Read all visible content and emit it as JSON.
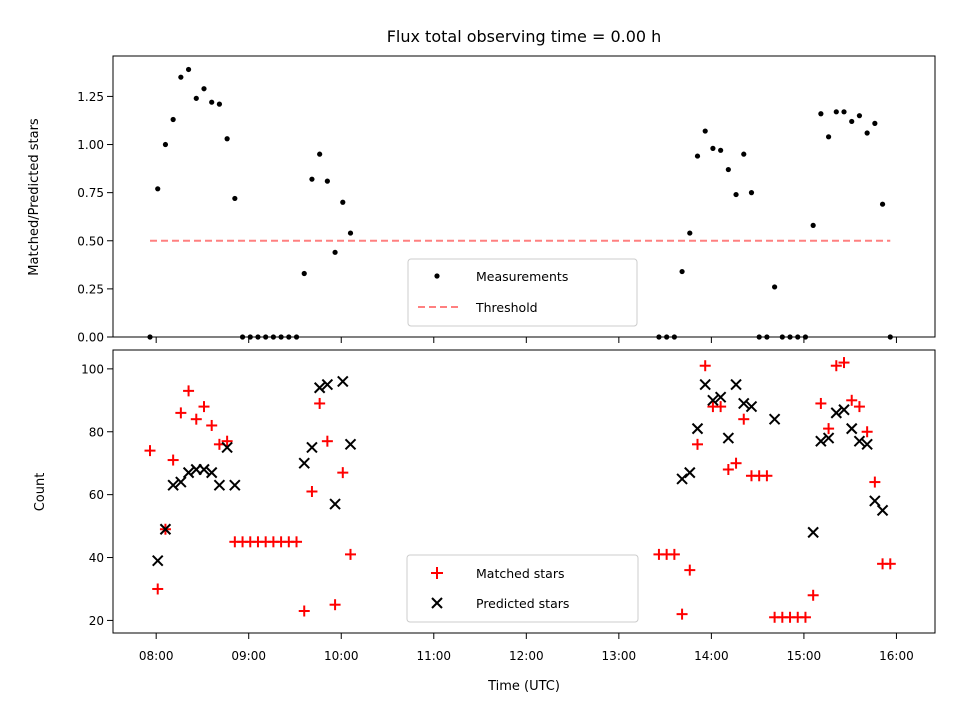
{
  "chart_data": [
    {
      "type": "scatter",
      "title": "Flux total observing time = 0.00 h",
      "ylabel": "Matched/Predicted stars",
      "xlabel": "",
      "x_tick_labels_shown": false,
      "xlim": [
        "07:32",
        "16:25"
      ],
      "ylim": [
        0,
        1.46
      ],
      "y_ticks": [
        "0.00",
        "0.25",
        "0.50",
        "0.75",
        "1.00",
        "1.25"
      ],
      "legend_position": "lower center",
      "grid": false,
      "series": [
        {
          "name": "Measurements",
          "marker": "dot",
          "color": "#000000",
          "points": [
            [
              "07:56",
              0.0
            ],
            [
              "08:01",
              0.77
            ],
            [
              "08:06",
              1.0
            ],
            [
              "08:11",
              1.13
            ],
            [
              "08:16",
              1.35
            ],
            [
              "08:21",
              1.39
            ],
            [
              "08:26",
              1.24
            ],
            [
              "08:31",
              1.29
            ],
            [
              "08:36",
              1.22
            ],
            [
              "08:41",
              1.21
            ],
            [
              "08:46",
              1.03
            ],
            [
              "08:51",
              0.72
            ],
            [
              "08:56",
              0.0
            ],
            [
              "09:01",
              0.0
            ],
            [
              "09:06",
              0.0
            ],
            [
              "09:11",
              0.0
            ],
            [
              "09:16",
              0.0
            ],
            [
              "09:21",
              0.0
            ],
            [
              "09:26",
              0.0
            ],
            [
              "09:31",
              0.0
            ],
            [
              "09:36",
              0.33
            ],
            [
              "09:41",
              0.82
            ],
            [
              "09:46",
              0.95
            ],
            [
              "09:51",
              0.81
            ],
            [
              "09:56",
              0.44
            ],
            [
              "10:01",
              0.7
            ],
            [
              "10:06",
              0.54
            ],
            [
              "13:26",
              0.0
            ],
            [
              "13:31",
              0.0
            ],
            [
              "13:36",
              0.0
            ],
            [
              "13:41",
              0.34
            ],
            [
              "13:46",
              0.54
            ],
            [
              "13:51",
              0.94
            ],
            [
              "13:56",
              1.07
            ],
            [
              "14:01",
              0.98
            ],
            [
              "14:06",
              0.97
            ],
            [
              "14:11",
              0.87
            ],
            [
              "14:16",
              0.74
            ],
            [
              "14:21",
              0.95
            ],
            [
              "14:26",
              0.75
            ],
            [
              "14:31",
              0.0
            ],
            [
              "14:36",
              0.0
            ],
            [
              "14:41",
              0.26
            ],
            [
              "14:46",
              0.0
            ],
            [
              "14:51",
              0.0
            ],
            [
              "14:56",
              0.0
            ],
            [
              "15:01",
              0.0
            ],
            [
              "15:06",
              0.58
            ],
            [
              "15:11",
              1.16
            ],
            [
              "15:16",
              1.04
            ],
            [
              "15:21",
              1.17
            ],
            [
              "15:26",
              1.17
            ],
            [
              "15:31",
              1.12
            ],
            [
              "15:36",
              1.15
            ],
            [
              "15:41",
              1.06
            ],
            [
              "15:46",
              1.11
            ],
            [
              "15:51",
              0.69
            ],
            [
              "15:56",
              0.0
            ]
          ]
        },
        {
          "name": "Threshold",
          "type": "line",
          "style": "dashed",
          "color": "#ff8080",
          "points": [
            [
              "07:56",
              0.5
            ],
            [
              "15:56",
              0.5
            ]
          ]
        }
      ]
    },
    {
      "type": "scatter",
      "title": "",
      "xlabel": "Time (UTC)",
      "ylabel": "Count",
      "xlim": [
        "07:32",
        "16:25"
      ],
      "ylim": [
        16,
        106
      ],
      "x_ticks": [
        "08:00",
        "09:00",
        "10:00",
        "11:00",
        "12:00",
        "13:00",
        "14:00",
        "15:00",
        "16:00"
      ],
      "y_ticks": [
        "20",
        "40",
        "60",
        "80",
        "100"
      ],
      "legend_position": "lower center",
      "grid": false,
      "series": [
        {
          "name": "Matched stars",
          "marker": "plus",
          "color": "#ff0000",
          "points": [
            [
              "07:56",
              74
            ],
            [
              "08:01",
              30
            ],
            [
              "08:06",
              49
            ],
            [
              "08:11",
              71
            ],
            [
              "08:16",
              86
            ],
            [
              "08:21",
              93
            ],
            [
              "08:26",
              84
            ],
            [
              "08:31",
              88
            ],
            [
              "08:36",
              82
            ],
            [
              "08:41",
              76
            ],
            [
              "08:46",
              77
            ],
            [
              "08:51",
              45
            ],
            [
              "08:56",
              45
            ],
            [
              "09:01",
              45
            ],
            [
              "09:06",
              45
            ],
            [
              "09:11",
              45
            ],
            [
              "09:16",
              45
            ],
            [
              "09:21",
              45
            ],
            [
              "09:26",
              45
            ],
            [
              "09:31",
              45
            ],
            [
              "09:36",
              23
            ],
            [
              "09:41",
              61
            ],
            [
              "09:46",
              89
            ],
            [
              "09:51",
              77
            ],
            [
              "09:56",
              25
            ],
            [
              "10:01",
              67
            ],
            [
              "10:06",
              41
            ],
            [
              "13:26",
              41
            ],
            [
              "13:31",
              41
            ],
            [
              "13:36",
              41
            ],
            [
              "13:41",
              22
            ],
            [
              "13:46",
              36
            ],
            [
              "13:51",
              76
            ],
            [
              "13:56",
              101
            ],
            [
              "14:01",
              88
            ],
            [
              "14:06",
              88
            ],
            [
              "14:11",
              68
            ],
            [
              "14:16",
              70
            ],
            [
              "14:21",
              84
            ],
            [
              "14:26",
              66
            ],
            [
              "14:31",
              66
            ],
            [
              "14:36",
              66
            ],
            [
              "14:41",
              21
            ],
            [
              "14:46",
              21
            ],
            [
              "14:51",
              21
            ],
            [
              "14:56",
              21
            ],
            [
              "15:01",
              21
            ],
            [
              "15:06",
              28
            ],
            [
              "15:11",
              89
            ],
            [
              "15:16",
              81
            ],
            [
              "15:21",
              101
            ],
            [
              "15:26",
              102
            ],
            [
              "15:31",
              90
            ],
            [
              "15:36",
              88
            ],
            [
              "15:41",
              80
            ],
            [
              "15:46",
              64
            ],
            [
              "15:51",
              38
            ],
            [
              "15:56",
              38
            ]
          ]
        },
        {
          "name": "Predicted stars",
          "marker": "x",
          "color": "#000000",
          "points": [
            [
              "08:01",
              39
            ],
            [
              "08:06",
              49
            ],
            [
              "08:11",
              63
            ],
            [
              "08:16",
              64
            ],
            [
              "08:21",
              67
            ],
            [
              "08:26",
              68
            ],
            [
              "08:31",
              68
            ],
            [
              "08:36",
              67
            ],
            [
              "08:41",
              63
            ],
            [
              "08:46",
              75
            ],
            [
              "08:51",
              63
            ],
            [
              "09:36",
              70
            ],
            [
              "09:41",
              75
            ],
            [
              "09:46",
              94
            ],
            [
              "09:51",
              95
            ],
            [
              "09:56",
              57
            ],
            [
              "10:01",
              96
            ],
            [
              "10:06",
              76
            ],
            [
              "13:41",
              65
            ],
            [
              "13:46",
              67
            ],
            [
              "13:51",
              81
            ],
            [
              "13:56",
              95
            ],
            [
              "14:01",
              90
            ],
            [
              "14:06",
              91
            ],
            [
              "14:11",
              78
            ],
            [
              "14:16",
              95
            ],
            [
              "14:21",
              89
            ],
            [
              "14:26",
              88
            ],
            [
              "14:41",
              84
            ],
            [
              "15:06",
              48
            ],
            [
              "15:11",
              77
            ],
            [
              "15:16",
              78
            ],
            [
              "15:21",
              86
            ],
            [
              "15:26",
              87
            ],
            [
              "15:31",
              81
            ],
            [
              "15:36",
              77
            ],
            [
              "15:41",
              76
            ],
            [
              "15:46",
              58
            ],
            [
              "15:51",
              55
            ]
          ]
        }
      ]
    }
  ]
}
